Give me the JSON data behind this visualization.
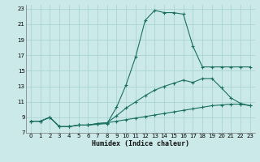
{
  "xlabel": "Humidex (Indice chaleur)",
  "bg_color": "#cce9e9",
  "grid_color": "#aad4d4",
  "line_color": "#1a7060",
  "xlim": [
    -0.5,
    23.5
  ],
  "ylim": [
    7,
    23.5
  ],
  "xticks": [
    0,
    1,
    2,
    3,
    4,
    5,
    6,
    7,
    8,
    9,
    10,
    11,
    12,
    13,
    14,
    15,
    16,
    17,
    18,
    19,
    20,
    21,
    22,
    23
  ],
  "yticks": [
    7,
    9,
    11,
    13,
    15,
    17,
    19,
    21,
    23
  ],
  "line1_x": [
    0,
    1,
    2,
    3,
    4,
    5,
    6,
    7,
    8,
    9,
    10,
    11,
    12,
    13,
    14,
    15,
    16,
    17,
    18,
    19,
    20,
    21,
    22,
    23
  ],
  "line1_y": [
    8.5,
    8.5,
    9.0,
    7.8,
    7.8,
    8.0,
    8.0,
    8.1,
    8.2,
    10.3,
    13.2,
    16.8,
    21.5,
    22.8,
    22.5,
    22.5,
    22.3,
    18.2,
    15.5,
    15.5,
    15.5,
    15.5,
    15.5,
    15.5
  ],
  "line2_x": [
    0,
    1,
    2,
    3,
    4,
    5,
    6,
    7,
    8,
    9,
    10,
    11,
    12,
    13,
    14,
    15,
    16,
    17,
    18,
    19,
    20,
    21,
    22,
    23
  ],
  "line2_y": [
    8.5,
    8.5,
    9.0,
    7.8,
    7.8,
    8.0,
    8.0,
    8.2,
    8.3,
    9.2,
    10.2,
    11.0,
    11.8,
    12.5,
    13.0,
    13.4,
    13.8,
    13.5,
    14.0,
    14.0,
    12.8,
    11.5,
    10.8,
    10.5
  ],
  "line3_x": [
    0,
    1,
    2,
    3,
    4,
    5,
    6,
    7,
    8,
    9,
    10,
    11,
    12,
    13,
    14,
    15,
    16,
    17,
    18,
    19,
    20,
    21,
    22,
    23
  ],
  "line3_y": [
    8.5,
    8.5,
    9.0,
    7.8,
    7.8,
    8.0,
    8.0,
    8.2,
    8.3,
    8.5,
    8.7,
    8.9,
    9.1,
    9.3,
    9.5,
    9.7,
    9.9,
    10.1,
    10.3,
    10.5,
    10.6,
    10.7,
    10.7,
    10.5
  ]
}
